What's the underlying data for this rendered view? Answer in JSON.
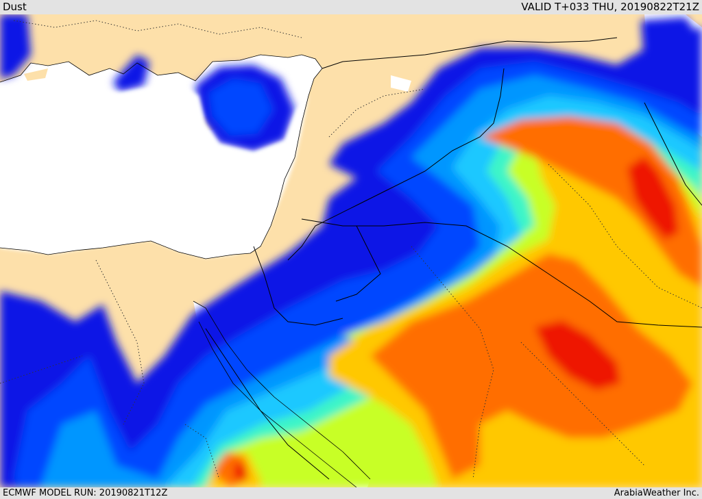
{
  "header": {
    "title": "Dust",
    "valid_time": "VALID T+033 THU, 20190822T21Z"
  },
  "footer": {
    "model_run": "ECMWF MODEL RUN: 20190821T12Z",
    "credit": "ArabiaWeather Inc."
  },
  "colors": {
    "land": "#fde0aa",
    "sea": "#ffffff",
    "bands": [
      "#0a14e6",
      "#0046ff",
      "#0096ff",
      "#1ec8ff",
      "#3cf5c8",
      "#c8ff28",
      "#ffc800",
      "#ff6e00",
      "#ee1400"
    ]
  }
}
